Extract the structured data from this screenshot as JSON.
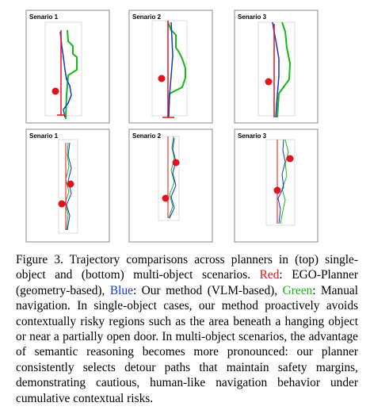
{
  "figure": {
    "panels": [
      {
        "row": "top",
        "label": "Senario 1"
      },
      {
        "row": "top",
        "label": "Senario 2"
      },
      {
        "row": "top",
        "label": "Senario 3"
      },
      {
        "row": "bottom",
        "label": "Senario 1"
      },
      {
        "row": "bottom",
        "label": "Senario 2"
      },
      {
        "row": "bottom",
        "label": "Senario 3"
      }
    ],
    "legend_colors": {
      "ego_planner": "#e0141e",
      "our_method": "#1a33cc",
      "manual": "#16b816"
    }
  },
  "caption": {
    "prefix": "Figure 3. Trajectory comparisons across planners in (top) single-object and (bottom) multi-object scenarios.",
    "red_label": "Red",
    "red_text": ": EGO-Planner (geometry-based),",
    "blue_label": "Blue",
    "blue_text": ": Our method (VLM-based),",
    "green_label": "Green",
    "green_text": ": Manual navigation.",
    "body": "In single-object cases, our method proactively avoids contextually risky regions such as the area beneath a hanging object or near a partially open door. In multi-object scenarios, the advantage of semantic reasoning becomes more pronounced: our planner consistently selects detour paths that maintain safety margins, demonstrating cautious, human-like navigation behavior under cumulative contextual risks."
  }
}
